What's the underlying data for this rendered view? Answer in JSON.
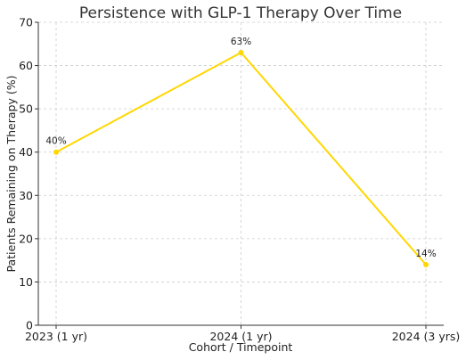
{
  "chart_data": {
    "type": "line",
    "title": "Persistence with GLP-1 Therapy Over Time",
    "xlabel": "Cohort / Timepoint",
    "ylabel": "Patients Remaining on Therapy (%)",
    "categories": [
      "2023 (1 yr)",
      "2024 (1 yr)",
      "2024 (3 yrs)"
    ],
    "series": [
      {
        "values": [
          40,
          63,
          14
        ],
        "labels": [
          "40%",
          "63%",
          "14%"
        ],
        "color": "#FFD700"
      }
    ],
    "ylim": [
      0,
      70
    ],
    "yticks": [
      0,
      10,
      20,
      30,
      40,
      50,
      60,
      70
    ],
    "grid": true,
    "legend": "none"
  }
}
